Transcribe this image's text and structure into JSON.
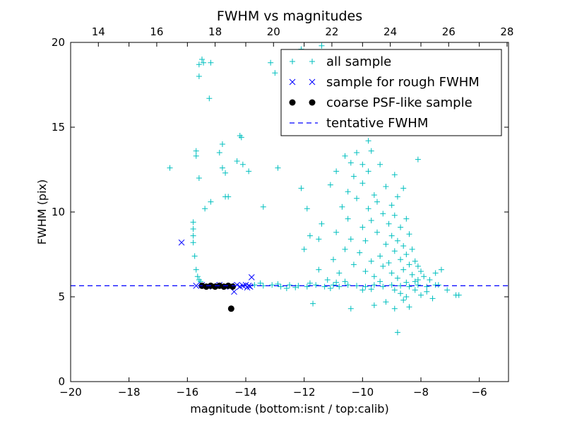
{
  "chart_data": {
    "type": "scatter",
    "title": "FWHM vs magnitudes",
    "xlabel": "magnitude (bottom:isnt / top:calib)",
    "ylabel": "FWHM (pix)",
    "xlim": [
      -20,
      -5
    ],
    "ylim": [
      0,
      20
    ],
    "top_xlim": [
      13.05,
      28.05
    ],
    "xticks": [
      -20,
      -18,
      -16,
      -14,
      -12,
      -10,
      -8,
      -6
    ],
    "xtick_labels": [
      "−20",
      "−18",
      "−16",
      "−14",
      "−12",
      "−10",
      "−8",
      "−6"
    ],
    "yticks": [
      0,
      5,
      10,
      15,
      20
    ],
    "ytick_labels": [
      "0",
      "5",
      "10",
      "15",
      "20"
    ],
    "top_xticks": [
      14,
      16,
      18,
      20,
      22,
      24,
      26,
      28
    ],
    "top_xtick_labels": [
      "14",
      "16",
      "18",
      "20",
      "22",
      "24",
      "26",
      "28"
    ],
    "grid": false,
    "legend_position": "top-right",
    "series": [
      {
        "name": "all sample",
        "marker": "+",
        "color": "#00bfbf",
        "points": [
          [
            -15.5,
            19
          ],
          [
            -15.45,
            18.8
          ],
          [
            -15.6,
            18.7
          ],
          [
            -15.6,
            18
          ],
          [
            -15.2,
            18.8
          ],
          [
            -15.25,
            16.7
          ],
          [
            -16.6,
            12.6
          ],
          [
            -15.7,
            13.6
          ],
          [
            -15.7,
            13.3
          ],
          [
            -15.6,
            12
          ],
          [
            -15.4,
            10.2
          ],
          [
            -15.2,
            10.6
          ],
          [
            -14.7,
            10.9
          ],
          [
            -14.6,
            10.9
          ],
          [
            -14.8,
            12.6
          ],
          [
            -14.7,
            12.3
          ],
          [
            -14.9,
            13.5
          ],
          [
            -14.8,
            14
          ],
          [
            -14.2,
            14.5
          ],
          [
            -14.15,
            14.4
          ],
          [
            -14.3,
            13
          ],
          [
            -14.1,
            12.8
          ],
          [
            -13.9,
            12.4
          ],
          [
            -15.8,
            9.4
          ],
          [
            -15.8,
            9
          ],
          [
            -15.8,
            8.6
          ],
          [
            -15.8,
            8.2
          ],
          [
            -15.75,
            7.4
          ],
          [
            -15.7,
            6.6
          ],
          [
            -15.65,
            6.2
          ],
          [
            -15.6,
            6.0
          ],
          [
            -15.55,
            5.9
          ],
          [
            -13.4,
            10.3
          ],
          [
            -12.9,
            12.6
          ],
          [
            -13.15,
            18.8
          ],
          [
            -13.0,
            18.2
          ],
          [
            -12.1,
            11.4
          ],
          [
            -11.9,
            10.2
          ],
          [
            -11.8,
            8.6
          ],
          [
            -12.0,
            7.8
          ],
          [
            -11.5,
            8.4
          ],
          [
            -11.4,
            9.3
          ],
          [
            -11.1,
            11.6
          ],
          [
            -10.9,
            12.4
          ],
          [
            -10.6,
            13.3
          ],
          [
            -10.4,
            12.9
          ],
          [
            -10.2,
            13.5
          ],
          [
            -10,
            12.8
          ],
          [
            -9.8,
            14.2
          ],
          [
            -9.7,
            13.6
          ],
          [
            -10.7,
            16.6
          ],
          [
            -11.4,
            19.8
          ],
          [
            -12.1,
            19.6
          ],
          [
            -11.5,
            6.6
          ],
          [
            -11.2,
            6.0
          ],
          [
            -11.0,
            7.2
          ],
          [
            -10.9,
            8.8
          ],
          [
            -10.8,
            6.4
          ],
          [
            -10.7,
            10.3
          ],
          [
            -10.6,
            7.8
          ],
          [
            -10.5,
            9.6
          ],
          [
            -10.5,
            11.2
          ],
          [
            -10.4,
            8.4
          ],
          [
            -10.3,
            6.9
          ],
          [
            -10.3,
            12.1
          ],
          [
            -10.2,
            10.8
          ],
          [
            -10.1,
            7.6
          ],
          [
            -10.0,
            9.1
          ],
          [
            -10.0,
            11.7
          ],
          [
            -9.9,
            6.5
          ],
          [
            -9.9,
            8.3
          ],
          [
            -9.8,
            10.2
          ],
          [
            -9.8,
            12.4
          ],
          [
            -9.7,
            7.1
          ],
          [
            -9.7,
            9.5
          ],
          [
            -9.6,
            11.0
          ],
          [
            -9.6,
            6.2
          ],
          [
            -9.5,
            8.8
          ],
          [
            -9.5,
            10.6
          ],
          [
            -9.4,
            7.4
          ],
          [
            -9.4,
            12.8
          ],
          [
            -9.3,
            9.9
          ],
          [
            -9.3,
            6.8
          ],
          [
            -9.2,
            8.1
          ],
          [
            -9.2,
            11.5
          ],
          [
            -9.1,
            7.0
          ],
          [
            -9.1,
            9.3
          ],
          [
            -9.0,
            10.4
          ],
          [
            -9.0,
            6.4
          ],
          [
            -9.0,
            8.6
          ],
          [
            -8.9,
            7.7
          ],
          [
            -8.9,
            9.8
          ],
          [
            -8.9,
            12.2
          ],
          [
            -8.8,
            6.1
          ],
          [
            -8.8,
            8.3
          ],
          [
            -8.8,
            10.9
          ],
          [
            -8.7,
            7.2
          ],
          [
            -8.7,
            9.1
          ],
          [
            -8.7,
            5.2
          ],
          [
            -8.6,
            6.6
          ],
          [
            -8.6,
            8.0
          ],
          [
            -8.6,
            11.4
          ],
          [
            -8.5,
            7.5
          ],
          [
            -8.5,
            9.6
          ],
          [
            -8.5,
            5.0
          ],
          [
            -8.4,
            6.9
          ],
          [
            -8.4,
            8.7
          ],
          [
            -8.3,
            6.3
          ],
          [
            -8.3,
            7.8
          ],
          [
            -8.2,
            5.4
          ],
          [
            -8.2,
            7.1
          ],
          [
            -8.1,
            6.0
          ],
          [
            -8.1,
            6.8
          ],
          [
            -8.0,
            5.1
          ],
          [
            -8.0,
            6.5
          ],
          [
            -7.9,
            6.2
          ],
          [
            -7.8,
            5.3
          ],
          [
            -7.7,
            6.0
          ],
          [
            -7.6,
            4.9
          ],
          [
            -7.5,
            6.4
          ],
          [
            -7.4,
            5.7
          ],
          [
            -7.3,
            6.6
          ],
          [
            -7.1,
            5.4
          ],
          [
            -6.8,
            5.1
          ],
          [
            -6.7,
            5.1
          ],
          [
            -9.6,
            4.5
          ],
          [
            -9.2,
            4.7
          ],
          [
            -8.9,
            4.3
          ],
          [
            -8.6,
            4.8
          ],
          [
            -8.4,
            4.4
          ],
          [
            -10.4,
            4.3
          ],
          [
            -11.7,
            4.6
          ],
          [
            -8.8,
            2.9
          ],
          [
            -13.7,
            5.7
          ],
          [
            -13.4,
            5.65
          ],
          [
            -13.1,
            5.7
          ],
          [
            -12.8,
            5.6
          ],
          [
            -12.5,
            5.7
          ],
          [
            -12.2,
            5.65
          ],
          [
            -11.9,
            5.6
          ],
          [
            -11.6,
            5.7
          ],
          [
            -11.3,
            5.6
          ],
          [
            -11.0,
            5.7
          ],
          [
            -10.8,
            5.6
          ],
          [
            -10.5,
            5.7
          ],
          [
            -10.2,
            5.65
          ],
          [
            -9.9,
            5.6
          ],
          [
            -9.6,
            5.7
          ],
          [
            -9.3,
            5.6
          ],
          [
            -9.0,
            5.7
          ],
          [
            -8.7,
            5.65
          ],
          [
            -8.4,
            5.6
          ],
          [
            -8.1,
            5.7
          ],
          [
            -7.8,
            5.6
          ],
          [
            -7.5,
            5.7
          ],
          [
            -13.5,
            5.8
          ],
          [
            -12.6,
            5.5
          ],
          [
            -11.8,
            5.8
          ],
          [
            -11.1,
            5.5
          ],
          [
            -10.6,
            5.9
          ],
          [
            -10.0,
            5.4
          ],
          [
            -9.4,
            5.9
          ],
          [
            -8.9,
            5.4
          ],
          [
            -8.2,
            5.9
          ],
          [
            -12.9,
            5.75
          ],
          [
            -12.3,
            5.55
          ],
          [
            -10.9,
            5.85
          ],
          [
            -9.7,
            5.45
          ],
          [
            -8.5,
            5.85
          ],
          [
            -8.1,
            13.1
          ],
          [
            -9.0,
            15.3
          ],
          [
            -10.3,
            15.8
          ],
          [
            -8.5,
            18.7
          ]
        ]
      },
      {
        "name": "sample for rough FWHM",
        "marker": "x",
        "color": "#0000ff",
        "points": [
          [
            -16.2,
            8.2
          ],
          [
            -13.8,
            6.15
          ],
          [
            -15.7,
            5.65
          ],
          [
            -15.5,
            5.7
          ],
          [
            -15.3,
            5.6
          ],
          [
            -15.1,
            5.65
          ],
          [
            -14.9,
            5.7
          ],
          [
            -14.7,
            5.6
          ],
          [
            -14.5,
            5.65
          ],
          [
            -14.3,
            5.7
          ],
          [
            -14.2,
            5.6
          ],
          [
            -14.1,
            5.65
          ],
          [
            -14.0,
            5.7
          ],
          [
            -13.95,
            5.55
          ],
          [
            -13.9,
            5.65
          ],
          [
            -13.85,
            5.6
          ],
          [
            -14.4,
            5.3
          ]
        ]
      },
      {
        "name": "coarse PSF-like sample",
        "marker": "o",
        "color": "#000000",
        "points": [
          [
            -15.5,
            5.65
          ],
          [
            -15.35,
            5.6
          ],
          [
            -15.2,
            5.65
          ],
          [
            -15.05,
            5.6
          ],
          [
            -14.9,
            5.65
          ],
          [
            -14.75,
            5.6
          ],
          [
            -14.6,
            5.65
          ],
          [
            -14.45,
            5.6
          ],
          [
            -14.5,
            4.3
          ]
        ]
      },
      {
        "name": "tentative FWHM",
        "marker": "dashed-line",
        "color": "#0000ff",
        "value": 5.65
      }
    ]
  }
}
